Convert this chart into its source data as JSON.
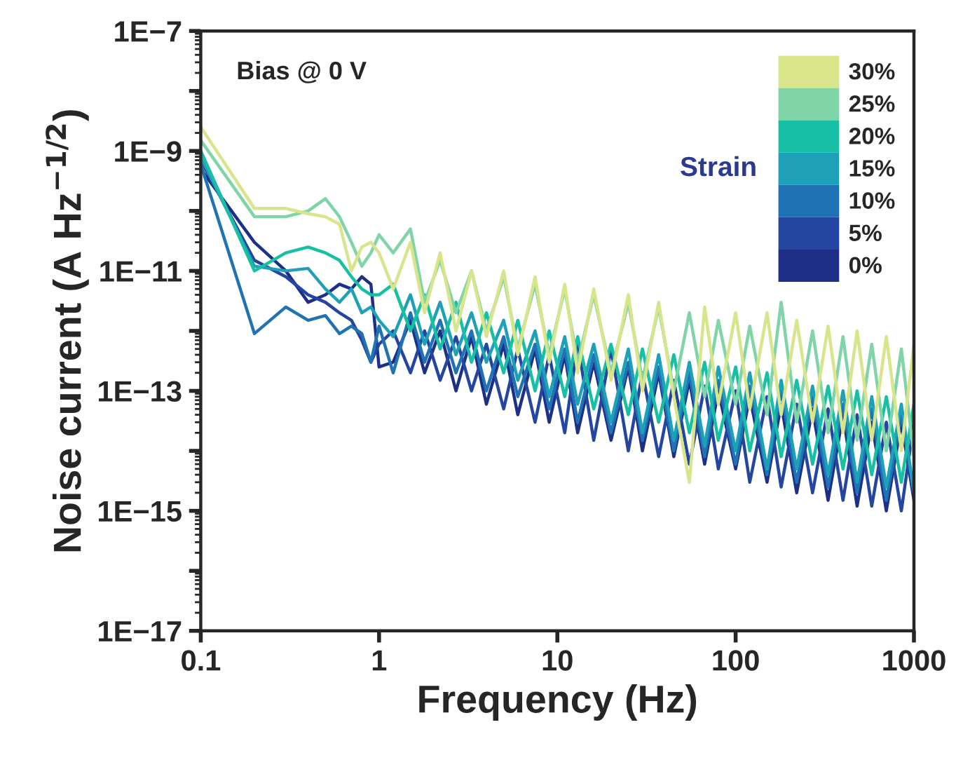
{
  "chart_data": {
    "type": "line",
    "xlabel": "Frequency (Hz)",
    "ylabel": "Noise current (A Hz$^{−1/2}$)",
    "legend_title": "Strain",
    "annotations": [
      "Bias @ 0 V"
    ],
    "log": "xy",
    "xlim": [
      0.1,
      1000
    ],
    "xticks": [
      0.1,
      1,
      10,
      100,
      1000
    ],
    "ylim": [
      1e-17,
      1e-07
    ],
    "yticks": [
      {
        "value": 1e-17,
        "label": "1E−17"
      },
      {
        "value": 1e-16,
        "label": null
      },
      {
        "value": 1e-15,
        "label": "1E−15"
      },
      {
        "value": 1e-14,
        "label": null
      },
      {
        "value": 1e-13,
        "label": "1E−13"
      },
      {
        "value": 1e-12,
        "label": null
      },
      {
        "value": 1e-11,
        "label": "1E−11"
      },
      {
        "value": 1e-10,
        "label": null
      },
      {
        "value": 1e-09,
        "label": "1E−9"
      },
      {
        "value": 1e-08,
        "label": null
      },
      {
        "value": 1e-07,
        "label": "1E−7"
      }
    ],
    "grid": false,
    "legend": "top right",
    "marker": "none",
    "line_style": "solid",
    "x": [
      0.1,
      0.2,
      0.3,
      0.4,
      0.5,
      0.6,
      0.7,
      0.8,
      0.9,
      1,
      1.2,
      1.5,
      1.8,
      2.2,
      2.7,
      3.3,
      4,
      5,
      6,
      7.5,
      9,
      11,
      13,
      16,
      20,
      25,
      30,
      37,
      45,
      55,
      67,
      80,
      100,
      120,
      150,
      180,
      220,
      270,
      330,
      400,
      480,
      580,
      700,
      850,
      1000
    ],
    "series": [
      {
        "name": "0%",
        "color": "#1d2f86",
        "values": [
          5e-10,
          3e-11,
          1e-11,
          3e-12,
          4e-12,
          6e-12,
          5e-12,
          8e-12,
          6e-12,
          2.5e-13,
          3e-13,
          1.5e-12,
          2e-13,
          1e-12,
          1e-13,
          8e-13,
          6e-14,
          6e-13,
          4e-14,
          5e-13,
          3e-14,
          4e-13,
          2e-14,
          3e-13,
          1.5e-14,
          2.5e-13,
          1e-14,
          2e-13,
          8e-15,
          1.5e-13,
          6e-15,
          1e-13,
          5e-15,
          8e-14,
          3e-15,
          6e-14,
          2e-15,
          5e-14,
          1.5e-15,
          4e-14,
          1.2e-15,
          3e-14,
          1e-15,
          3e-14,
          1.5e-15
        ]
      },
      {
        "name": "5%",
        "color": "#2446a0",
        "values": [
          7e-10,
          1.5e-11,
          8e-12,
          4e-12,
          3e-12,
          2e-12,
          1.5e-12,
          7e-13,
          3e-13,
          6e-13,
          1e-12,
          2e-13,
          1e-12,
          1.5e-13,
          8e-13,
          1e-13,
          6e-13,
          5e-14,
          5e-13,
          3e-14,
          4e-13,
          2e-14,
          6e-13,
          1.5e-14,
          5e-13,
          1e-14,
          2e-13,
          8e-15,
          1.5e-13,
          6e-15,
          1.2e-13,
          5e-15,
          1e-13,
          3e-15,
          8e-14,
          2.5e-15,
          6e-14,
          2e-15,
          5e-14,
          1.5e-15,
          4e-14,
          1.2e-15,
          3e-14,
          1e-15,
          3e-14
        ]
      },
      {
        "name": "10%",
        "color": "#1f72b4",
        "values": [
          6e-10,
          9e-13,
          2.5e-12,
          1.5e-12,
          1.8e-12,
          9e-13,
          1.2e-12,
          9e-13,
          3e-13,
          1.2e-12,
          2e-13,
          2e-12,
          3e-13,
          1.5e-12,
          2e-13,
          1e-12,
          1e-13,
          8e-13,
          8e-14,
          6e-13,
          5e-14,
          5e-13,
          3e-14,
          4e-13,
          2e-14,
          3e-13,
          1.5e-14,
          2.5e-13,
          1e-14,
          2e-13,
          8e-15,
          1.5e-13,
          6e-15,
          1.2e-13,
          4e-15,
          1e-13,
          3e-15,
          8e-14,
          2.5e-15,
          6e-14,
          2e-15,
          5e-14,
          1.5e-15,
          4e-14,
          2e-15
        ]
      },
      {
        "name": "15%",
        "color": "#1ea0b8",
        "values": [
          8e-10,
          1.2e-11,
          1e-11,
          1.1e-11,
          5e-12,
          3e-12,
          5e-12,
          2e-12,
          2.5e-12,
          1.5e-12,
          8e-13,
          4e-12,
          6e-13,
          3e-12,
          4e-13,
          2e-12,
          3e-13,
          1.5e-12,
          1.5e-13,
          1e-12,
          8e-14,
          8e-13,
          6e-14,
          6e-13,
          3e-14,
          5e-13,
          2e-14,
          4e-13,
          1.5e-14,
          3e-13,
          1.2e-14,
          2.5e-13,
          1e-14,
          2e-13,
          5e-15,
          1.5e-13,
          5e-15,
          1.2e-13,
          4e-15,
          1e-13,
          3e-15,
          8e-14,
          2.5e-15,
          6e-14,
          2e-15
        ]
      },
      {
        "name": "20%",
        "color": "#17c0a4",
        "values": [
          1e-09,
          1e-11,
          2e-11,
          2.5e-11,
          2e-11,
          1.5e-11,
          8e-12,
          5e-12,
          4e-12,
          4e-12,
          6e-12,
          1e-12,
          4e-12,
          5e-13,
          3e-12,
          3e-13,
          2e-12,
          2e-13,
          1.5e-12,
          1e-13,
          1e-12,
          8e-14,
          8e-13,
          5e-14,
          6e-13,
          4e-14,
          5e-13,
          3e-14,
          4e-13,
          2e-14,
          3e-13,
          1.5e-14,
          2.5e-13,
          1e-14,
          2e-13,
          8e-15,
          1.5e-13,
          6e-15,
          1.2e-13,
          5e-15,
          1e-13,
          4e-15,
          8e-14,
          3e-15,
          6e-14
        ]
      },
      {
        "name": "25%",
        "color": "#7fd4a8",
        "values": [
          1.5e-09,
          8e-11,
          8e-11,
          1e-10,
          1.6e-10,
          8e-11,
          3e-11,
          1.2e-11,
          2e-11,
          4e-11,
          2e-11,
          5e-11,
          3e-12,
          1.5e-11,
          2e-12,
          1e-11,
          1e-12,
          8e-12,
          5e-13,
          6e-12,
          4e-13,
          5e-12,
          3e-13,
          4e-12,
          2e-13,
          3e-12,
          1.5e-13,
          2.5e-12,
          1e-13,
          2e-12,
          8e-14,
          1.5e-12,
          6e-14,
          1.2e-12,
          4e-14,
          3e-12,
          3e-14,
          1e-12,
          2e-14,
          8e-13,
          1.5e-14,
          6e-13,
          1e-14,
          5e-13,
          8e-15
        ]
      },
      {
        "name": "30%",
        "color": "#d8e58a",
        "values": [
          2.5e-09,
          1.1e-10,
          1.1e-10,
          9e-11,
          8e-11,
          6e-11,
          1e-11,
          2.5e-11,
          3e-11,
          2e-11,
          5e-12,
          3e-11,
          2e-12,
          2e-11,
          1e-12,
          1e-11,
          8e-13,
          1e-11,
          4e-13,
          8e-12,
          3e-13,
          6e-12,
          2e-13,
          5e-12,
          1.5e-13,
          4e-12,
          1e-13,
          3e-12,
          8e-14,
          3e-15,
          2.5e-12,
          6e-14,
          2e-12,
          5e-14,
          2e-12,
          4e-14,
          1.5e-12,
          3e-14,
          1.2e-12,
          2e-14,
          1e-12,
          1.5e-14,
          8e-13,
          1e-14,
          6e-13
        ]
      }
    ]
  }
}
